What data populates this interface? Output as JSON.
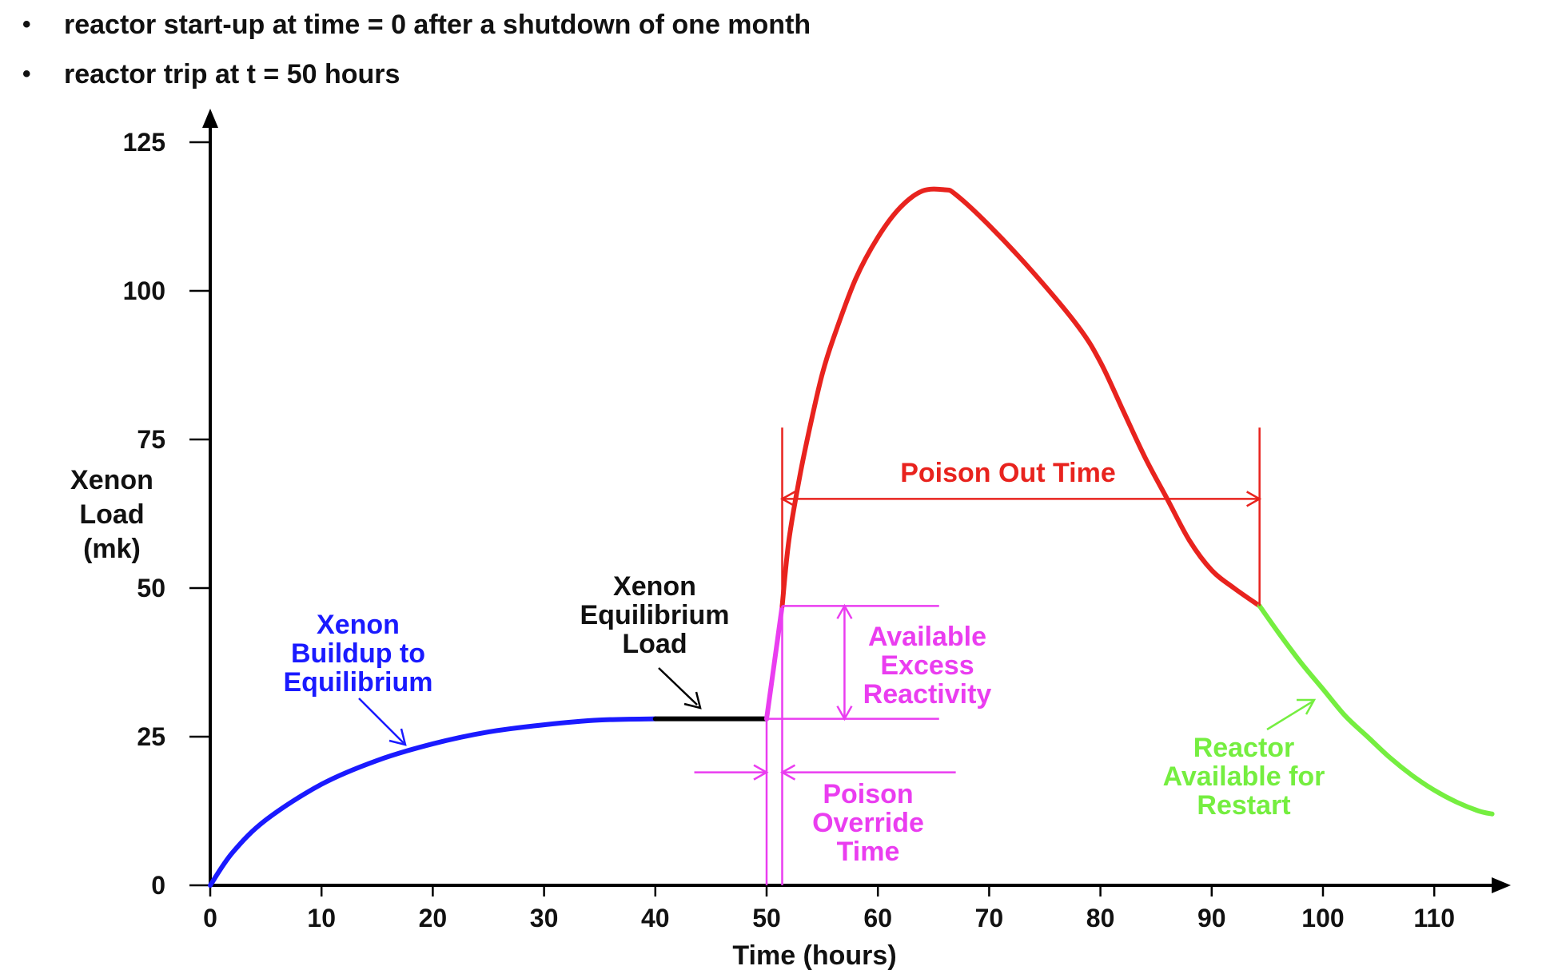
{
  "bullets": [
    "reactor start-up at time = 0 after a shutdown of one month",
    "reactor trip at t = 50 hours"
  ],
  "chart_data": {
    "type": "line",
    "title": "",
    "xlabel": "Time (hours)",
    "ylabel": [
      "Xenon",
      "Load",
      "(mk)"
    ],
    "xlim": [
      0,
      117
    ],
    "ylim": [
      0,
      125
    ],
    "xticks": [
      0,
      10,
      20,
      30,
      40,
      50,
      60,
      70,
      80,
      90,
      100,
      110
    ],
    "yticks": [
      0,
      25,
      50,
      75,
      100,
      125
    ],
    "series": [
      {
        "name": "Xenon Buildup to Equilibrium",
        "color": "#1a1aff",
        "x": [
          0,
          2,
          5,
          10,
          15,
          20,
          25,
          30,
          35,
          40
        ],
        "y": [
          0,
          5.5,
          11,
          17,
          21,
          23.8,
          25.8,
          27,
          27.8,
          28
        ]
      },
      {
        "name": "Xenon Equilibrium Load",
        "color": "#000000",
        "x": [
          40,
          50
        ],
        "y": [
          28,
          28
        ]
      },
      {
        "name": "Available Excess Reactivity",
        "color": "#ea3df0",
        "x": [
          50,
          51.4
        ],
        "y": [
          28,
          47
        ]
      },
      {
        "name": "Poison Out Time",
        "color": "#e8231e",
        "x": [
          51.4,
          52,
          53,
          54,
          55,
          56,
          58,
          60,
          62,
          64,
          66,
          67,
          70,
          74,
          78,
          80,
          82,
          84,
          86,
          88,
          90,
          92,
          94.3
        ],
        "y": [
          47,
          58,
          69,
          78,
          86,
          92,
          102,
          109,
          114,
          116.8,
          117,
          116.2,
          111,
          103,
          94,
          88,
          80,
          72,
          65,
          58,
          53,
          50,
          47
        ]
      },
      {
        "name": "Reactor Available for Restart",
        "color": "#75ee40",
        "x": [
          94.3,
          96,
          98,
          100,
          102,
          104,
          106,
          108,
          110,
          112,
          114,
          115.2
        ],
        "y": [
          47,
          42.5,
          37.5,
          33,
          28.5,
          25,
          21.5,
          18.5,
          16,
          14,
          12.5,
          12
        ]
      }
    ],
    "annotations": {
      "blue": [
        "Xenon",
        "Buildup to",
        "Equilibrium"
      ],
      "black": [
        "Xenon",
        "Equilibrium",
        "Load"
      ],
      "poison_out": "Poison Out Time",
      "excess": [
        "Available",
        "Excess",
        "Reactivity"
      ],
      "override": [
        "Poison",
        "Override",
        "Time"
      ],
      "restart": [
        "Reactor",
        "Available for",
        "Restart"
      ]
    }
  }
}
